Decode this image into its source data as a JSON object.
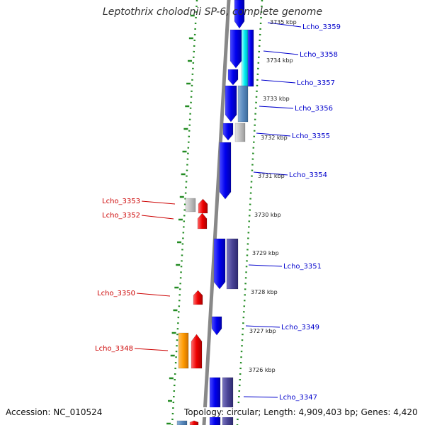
{
  "title": "Leptothrix cholodnii SP-6, complete genome",
  "footer": {
    "accession": "Accession: NC_010524",
    "topology": "Topology: circular; Length: 4,909,403 bp; Genes: 4,420"
  },
  "colors": {
    "forward_label": "#0000cc",
    "reverse_label": "#cc0000",
    "tick_dots": "#228b22",
    "backbone": "#888888"
  },
  "scale_labels": [
    "3735 kbp",
    "3734 kbp",
    "3733 kbp",
    "3732 kbp",
    "3731 kbp",
    "3730 kbp",
    "3729 kbp",
    "3728 kbp",
    "3727 kbp",
    "3726 kbp"
  ],
  "forward_genes": [
    {
      "label": "Lcho_3359"
    },
    {
      "label": "Lcho_3358"
    },
    {
      "label": "Lcho_3357"
    },
    {
      "label": "Lcho_3356"
    },
    {
      "label": "Lcho_3355"
    },
    {
      "label": "Lcho_3354"
    },
    {
      "label": "Lcho_3351"
    },
    {
      "label": "Lcho_3349"
    },
    {
      "label": "Lcho_3347"
    }
  ],
  "reverse_genes": [
    {
      "label": "Lcho_3353"
    },
    {
      "label": "Lcho_3352"
    },
    {
      "label": "Lcho_3350"
    },
    {
      "label": "Lcho_3348"
    }
  ]
}
